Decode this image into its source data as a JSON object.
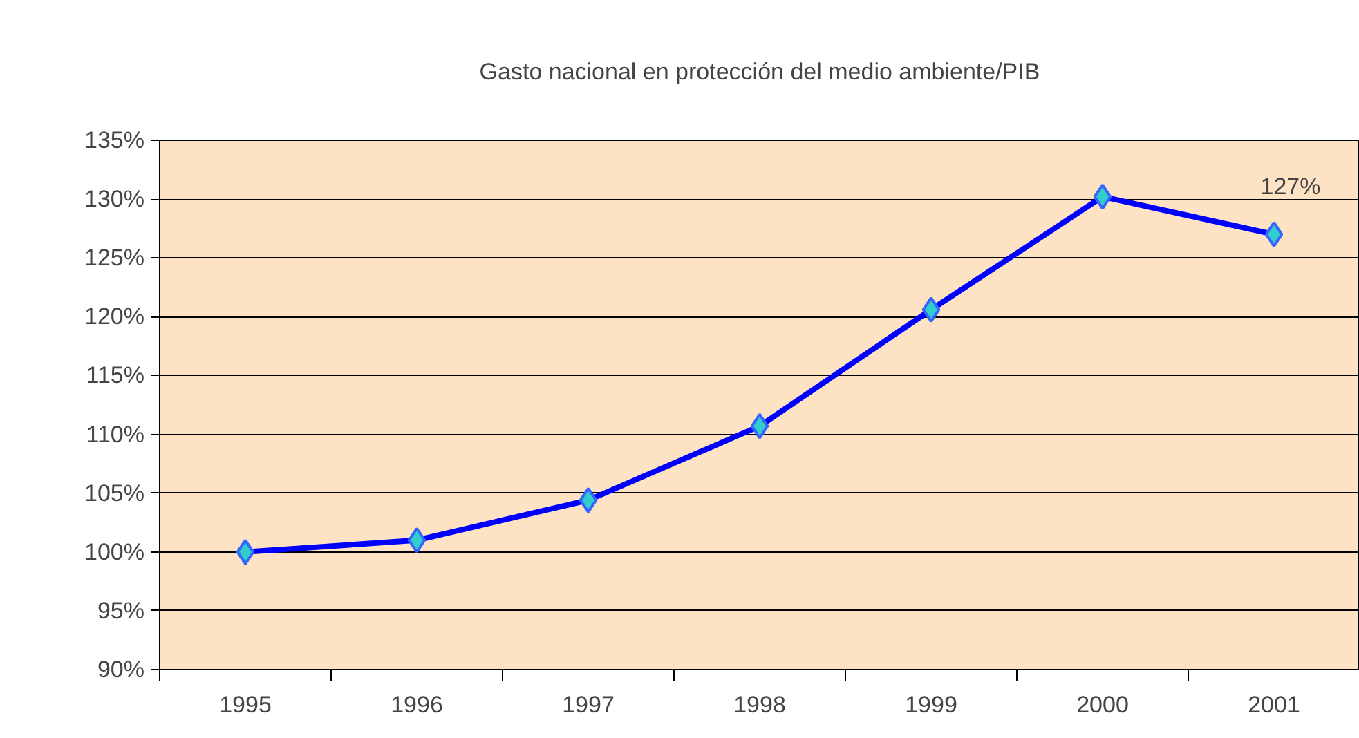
{
  "chart_data": {
    "type": "line",
    "title": "Gasto nacional en protección del medio ambiente/PIB",
    "categories": [
      "1995",
      "1996",
      "1997",
      "1998",
      "1999",
      "2000",
      "2001"
    ],
    "series": [
      {
        "color": "#0000ff",
        "values": [
          100,
          101,
          104.4,
          110.7,
          120.6,
          130.2,
          127
        ],
        "value_labels": [
          null,
          null,
          null,
          null,
          null,
          null,
          "127%"
        ]
      }
    ],
    "ylim": [
      90,
      135
    ],
    "yticks": [
      {
        "value": 90,
        "label": "90%"
      },
      {
        "value": 95,
        "label": "95%"
      },
      {
        "value": 100,
        "label": "100%"
      },
      {
        "value": 105,
        "label": "105%"
      },
      {
        "value": 110,
        "label": "110%"
      },
      {
        "value": 115,
        "label": "115%"
      },
      {
        "value": 120,
        "label": "120%"
      },
      {
        "value": 125,
        "label": "125%"
      },
      {
        "value": 130,
        "label": "130%"
      },
      {
        "value": 135,
        "label": "135%"
      }
    ],
    "grid": "y",
    "marker": "diamond",
    "line_style": "solid"
  }
}
